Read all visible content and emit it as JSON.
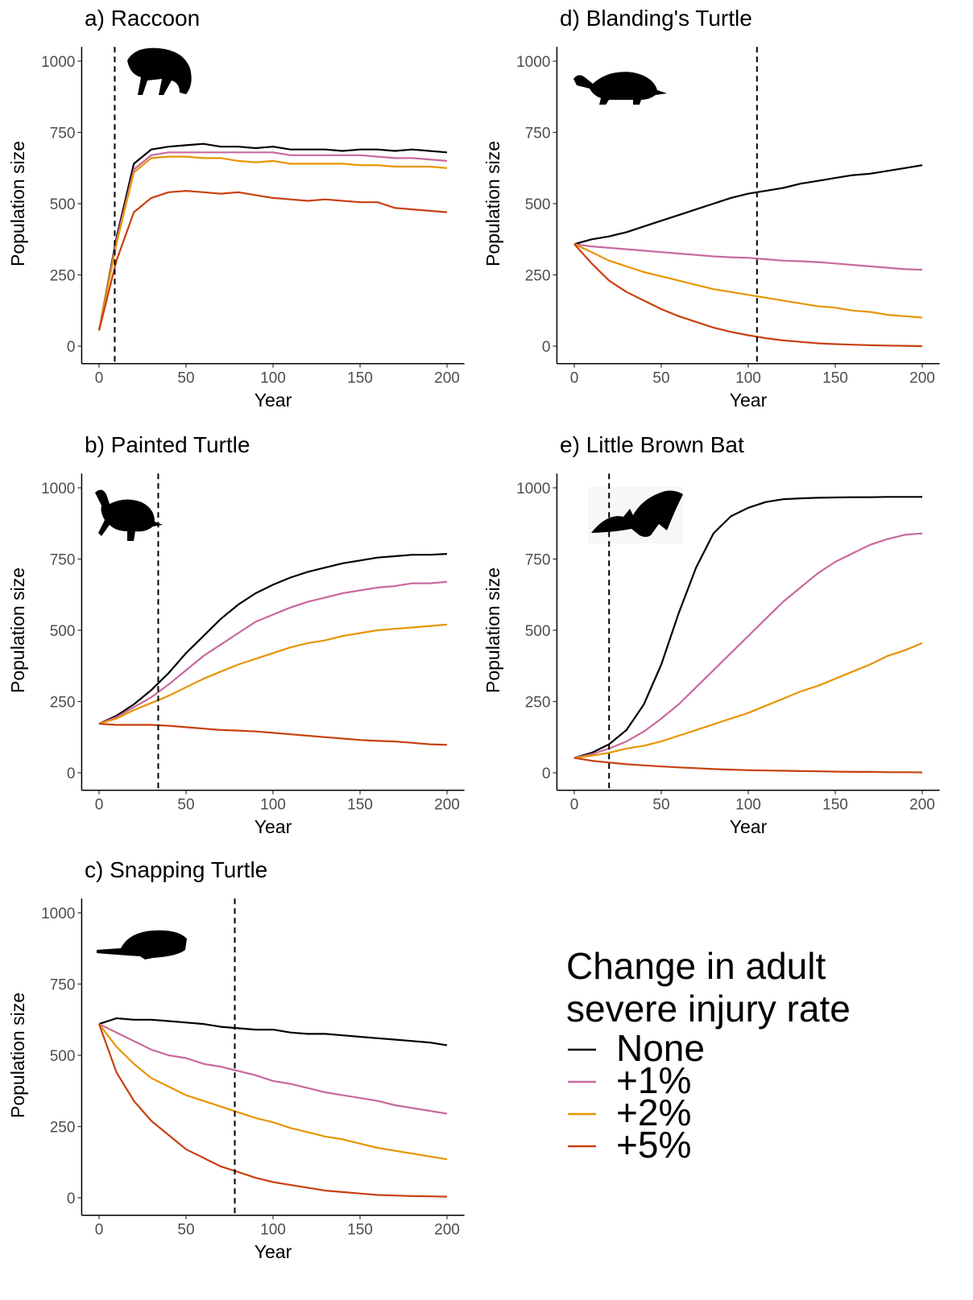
{
  "chart_data": [
    {
      "type": "line",
      "title": "a) Raccoon",
      "xlabel": "Year",
      "ylabel": "Population size",
      "x": [
        0,
        10,
        20,
        30,
        40,
        50,
        60,
        70,
        80,
        90,
        100,
        110,
        120,
        130,
        140,
        150,
        160,
        170,
        180,
        190,
        200
      ],
      "xlim": [
        -10,
        210
      ],
      "ylim": [
        -50,
        1050
      ],
      "xticks": [
        0,
        50,
        100,
        150,
        200
      ],
      "yticks": [
        0,
        250,
        500,
        750,
        1000
      ],
      "vline": 9,
      "series": [
        {
          "name": "None",
          "color": "#000000",
          "values": [
            55,
            380,
            640,
            690,
            700,
            705,
            710,
            700,
            700,
            695,
            700,
            690,
            690,
            690,
            685,
            690,
            690,
            685,
            690,
            685,
            680
          ]
        },
        {
          "name": "+1%",
          "color": "#c8689e",
          "values": [
            55,
            370,
            620,
            670,
            680,
            680,
            680,
            680,
            680,
            680,
            680,
            670,
            670,
            670,
            670,
            670,
            665,
            660,
            660,
            655,
            650
          ]
        },
        {
          "name": "+2%",
          "color": "#e69500",
          "values": [
            55,
            360,
            610,
            660,
            665,
            665,
            660,
            660,
            650,
            645,
            650,
            640,
            640,
            640,
            640,
            635,
            635,
            630,
            630,
            630,
            625
          ]
        },
        {
          "name": "+5%",
          "color": "#c8400e",
          "values": [
            55,
            300,
            470,
            520,
            540,
            545,
            540,
            535,
            540,
            530,
            520,
            515,
            510,
            515,
            510,
            505,
            505,
            485,
            480,
            475,
            470
          ]
        }
      ]
    },
    {
      "type": "line",
      "title": "b) Painted Turtle",
      "xlabel": "Year",
      "ylabel": "Population size",
      "x": [
        0,
        10,
        20,
        30,
        40,
        50,
        60,
        70,
        80,
        90,
        100,
        110,
        120,
        130,
        140,
        150,
        160,
        170,
        180,
        190,
        200
      ],
      "xlim": [
        -10,
        210
      ],
      "ylim": [
        -50,
        1050
      ],
      "xticks": [
        0,
        50,
        100,
        150,
        200
      ],
      "yticks": [
        0,
        250,
        500,
        750,
        1000
      ],
      "vline": 34,
      "series": [
        {
          "name": "None",
          "color": "#000000",
          "values": [
            172,
            200,
            240,
            290,
            350,
            420,
            480,
            540,
            590,
            630,
            660,
            685,
            705,
            720,
            735,
            745,
            755,
            760,
            765,
            765,
            768
          ]
        },
        {
          "name": "+1%",
          "color": "#c8689e",
          "values": [
            172,
            195,
            230,
            265,
            310,
            360,
            410,
            450,
            490,
            530,
            555,
            580,
            600,
            615,
            630,
            640,
            650,
            655,
            665,
            665,
            670
          ]
        },
        {
          "name": "+2%",
          "color": "#e69500",
          "values": [
            172,
            190,
            220,
            245,
            270,
            300,
            330,
            355,
            380,
            400,
            420,
            440,
            455,
            465,
            480,
            490,
            500,
            505,
            510,
            515,
            520
          ]
        },
        {
          "name": "+5%",
          "color": "#c8400e",
          "values": [
            172,
            168,
            168,
            168,
            165,
            160,
            155,
            150,
            148,
            145,
            140,
            135,
            130,
            125,
            120,
            115,
            112,
            110,
            105,
            100,
            98
          ]
        }
      ]
    },
    {
      "type": "line",
      "title": "c) Snapping Turtle",
      "xlabel": "Year",
      "ylabel": "Population size",
      "x": [
        0,
        10,
        20,
        30,
        40,
        50,
        60,
        70,
        80,
        90,
        100,
        110,
        120,
        130,
        140,
        150,
        160,
        170,
        180,
        190,
        200
      ],
      "xlim": [
        -10,
        210
      ],
      "ylim": [
        -50,
        1050
      ],
      "xticks": [
        0,
        50,
        100,
        150,
        200
      ],
      "yticks": [
        0,
        250,
        500,
        750,
        1000
      ],
      "vline": 78,
      "series": [
        {
          "name": "None",
          "color": "#000000",
          "values": [
            610,
            630,
            625,
            625,
            620,
            615,
            610,
            600,
            595,
            590,
            590,
            580,
            575,
            575,
            570,
            565,
            560,
            555,
            550,
            545,
            535
          ]
        },
        {
          "name": "+1%",
          "color": "#c8689e",
          "values": [
            610,
            580,
            550,
            520,
            500,
            490,
            470,
            460,
            445,
            430,
            410,
            400,
            385,
            370,
            360,
            350,
            340,
            325,
            315,
            305,
            295
          ]
        },
        {
          "name": "+2%",
          "color": "#e69500",
          "values": [
            610,
            530,
            470,
            420,
            390,
            360,
            340,
            320,
            300,
            280,
            265,
            245,
            230,
            215,
            205,
            190,
            175,
            165,
            155,
            145,
            135
          ]
        },
        {
          "name": "+5%",
          "color": "#c8400e",
          "values": [
            610,
            440,
            340,
            270,
            220,
            170,
            140,
            110,
            90,
            70,
            55,
            45,
            35,
            25,
            20,
            15,
            10,
            8,
            6,
            5,
            4
          ]
        }
      ]
    },
    {
      "type": "line",
      "title": "d) Blanding's Turtle",
      "xlabel": "Year",
      "ylabel": "Population size",
      "x": [
        0,
        10,
        20,
        30,
        40,
        50,
        60,
        70,
        80,
        90,
        100,
        110,
        120,
        130,
        140,
        150,
        160,
        170,
        180,
        190,
        200
      ],
      "xlim": [
        -10,
        210
      ],
      "ylim": [
        -50,
        1050
      ],
      "xticks": [
        0,
        50,
        100,
        150,
        200
      ],
      "yticks": [
        0,
        250,
        500,
        750,
        1000
      ],
      "vline": 105,
      "series": [
        {
          "name": "None",
          "color": "#000000",
          "values": [
            358,
            375,
            385,
            400,
            420,
            440,
            460,
            480,
            500,
            520,
            535,
            545,
            555,
            570,
            580,
            590,
            600,
            605,
            615,
            625,
            635
          ]
        },
        {
          "name": "+1%",
          "color": "#c8689e",
          "values": [
            358,
            350,
            345,
            340,
            335,
            330,
            325,
            320,
            315,
            312,
            310,
            305,
            300,
            298,
            295,
            290,
            285,
            280,
            275,
            270,
            268
          ]
        },
        {
          "name": "+2%",
          "color": "#e69500",
          "values": [
            358,
            330,
            300,
            280,
            260,
            245,
            230,
            215,
            200,
            190,
            180,
            170,
            160,
            150,
            140,
            135,
            125,
            120,
            110,
            105,
            100
          ]
        },
        {
          "name": "+5%",
          "color": "#c8400e",
          "values": [
            358,
            290,
            230,
            190,
            160,
            130,
            105,
            85,
            65,
            50,
            38,
            28,
            20,
            15,
            10,
            7,
            5,
            3,
            2,
            1,
            0
          ]
        }
      ]
    },
    {
      "type": "line",
      "title": "e) Little Brown Bat",
      "xlabel": "Year",
      "ylabel": "Population size",
      "x": [
        0,
        10,
        20,
        30,
        40,
        50,
        60,
        70,
        80,
        90,
        100,
        110,
        120,
        130,
        140,
        150,
        160,
        170,
        180,
        190,
        200
      ],
      "xlim": [
        -10,
        210
      ],
      "ylim": [
        -50,
        1050
      ],
      "xticks": [
        0,
        50,
        100,
        150,
        200
      ],
      "yticks": [
        0,
        250,
        500,
        750,
        1000
      ],
      "vline": 20,
      "series": [
        {
          "name": "None",
          "color": "#000000",
          "values": [
            52,
            70,
            100,
            150,
            240,
            380,
            560,
            720,
            840,
            900,
            930,
            950,
            960,
            963,
            965,
            966,
            967,
            967,
            968,
            968,
            968
          ]
        },
        {
          "name": "+1%",
          "color": "#c8689e",
          "values": [
            52,
            65,
            85,
            110,
            145,
            190,
            240,
            300,
            360,
            420,
            480,
            540,
            600,
            650,
            700,
            740,
            770,
            800,
            820,
            835,
            840
          ]
        },
        {
          "name": "+2%",
          "color": "#e69500",
          "values": [
            52,
            60,
            70,
            85,
            95,
            110,
            130,
            150,
            170,
            190,
            210,
            235,
            260,
            285,
            305,
            330,
            355,
            380,
            410,
            430,
            455
          ]
        },
        {
          "name": "+5%",
          "color": "#c8400e",
          "values": [
            52,
            42,
            36,
            30,
            26,
            22,
            19,
            16,
            13,
            11,
            9,
            8,
            7,
            6,
            5,
            4,
            3,
            3,
            2,
            2,
            1
          ]
        }
      ]
    }
  ],
  "legend": {
    "title": [
      "Change in adult",
      "severe injury rate"
    ]
  }
}
